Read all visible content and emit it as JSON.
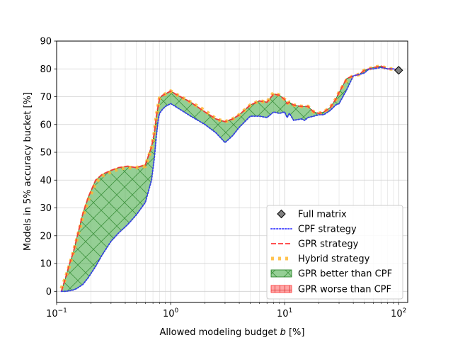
{
  "chart_data": {
    "type": "line",
    "title": "",
    "xlabel_prefix": "Allowed modeling budget ",
    "xlabel_var": "b",
    "xlabel_suffix": " [%]",
    "ylabel": "Models in 5% accuracy bucket [%]",
    "xscale": "log",
    "xlim": [
      0.1,
      120
    ],
    "ylim": [
      -4,
      90
    ],
    "x_major_ticks": [
      {
        "value": 0.1,
        "base": "10",
        "exp": "−1"
      },
      {
        "value": 1,
        "base": "10",
        "exp": "0"
      },
      {
        "value": 10,
        "base": "10",
        "exp": "1"
      },
      {
        "value": 100,
        "base": "10",
        "exp": "2"
      }
    ],
    "y_ticks": [
      {
        "value": 0,
        "label": "0"
      },
      {
        "value": 10,
        "label": "10"
      },
      {
        "value": 20,
        "label": "20"
      },
      {
        "value": 30,
        "label": "30"
      },
      {
        "value": 40,
        "label": "40"
      },
      {
        "value": 50,
        "label": "50"
      },
      {
        "value": 60,
        "label": "60"
      },
      {
        "value": 70,
        "label": "70"
      },
      {
        "value": 80,
        "label": "80"
      },
      {
        "value": 90,
        "label": "90"
      }
    ],
    "grid": "both (major and minor)",
    "legend_position": "lower-right",
    "colors": {
      "cpf": "#3333ff",
      "gpr": "#ff3333",
      "hybrid": "#ffb833",
      "better_fill": "#2ca02c",
      "better_edge": "#1a7a1a",
      "worse_fill": "#ff4d4d",
      "full_matrix": "#808080"
    },
    "legend": [
      {
        "key": "full",
        "label": "Full matrix"
      },
      {
        "key": "cpf",
        "label": "CPF strategy"
      },
      {
        "key": "gpr",
        "label": "GPR strategy"
      },
      {
        "key": "hybrid",
        "label": "Hybrid strategy"
      },
      {
        "key": "better",
        "label": "GPR better than CPF"
      },
      {
        "key": "worse",
        "label": "GPR worse than CPF"
      }
    ],
    "full_matrix": {
      "x": 100,
      "y": 79.5
    },
    "series": [
      {
        "key": "cpf",
        "name": "CPF strategy",
        "x": [
          0.11,
          0.12,
          0.13,
          0.14,
          0.15,
          0.17,
          0.19,
          0.22,
          0.25,
          0.3,
          0.35,
          0.42,
          0.5,
          0.6,
          0.68,
          0.72,
          0.75,
          0.78,
          0.8,
          0.85,
          0.9,
          1.0,
          1.1,
          1.5,
          2.0,
          2.5,
          3.0,
          3.5,
          4.0,
          5.0,
          6.0,
          7.0,
          8.0,
          9.0,
          10.0,
          10.5,
          11.0,
          12.0,
          14.0,
          15.0,
          16.0,
          18.0,
          20.0,
          22.0,
          25.0,
          28.0,
          30.0,
          35.0,
          40.0,
          45.0,
          50.0,
          55.0,
          60.0,
          70.0,
          80.0,
          90.0,
          100.0
        ],
        "y": [
          0,
          0,
          0.2,
          0.5,
          1,
          2.5,
          5,
          9,
          13,
          18,
          21,
          24,
          27.5,
          32,
          40,
          48,
          56,
          62,
          64,
          65.5,
          66.5,
          67.5,
          66.5,
          63,
          60,
          57,
          53.5,
          56,
          59,
          63,
          63,
          62.5,
          64.5,
          64,
          64.5,
          62.5,
          64,
          61.5,
          62,
          61.5,
          62.5,
          63,
          63.5,
          63.5,
          65,
          67,
          67.5,
          72.5,
          77.5,
          78,
          78.5,
          80,
          80,
          80.5,
          80,
          80,
          79.5
        ]
      },
      {
        "key": "gpr",
        "name": "GPR strategy",
        "x": [
          0.11,
          0.12,
          0.13,
          0.14,
          0.15,
          0.17,
          0.19,
          0.22,
          0.25,
          0.3,
          0.35,
          0.42,
          0.5,
          0.6,
          0.68,
          0.72,
          0.75,
          0.78,
          0.8,
          0.85,
          0.9,
          1.0,
          1.1,
          1.5,
          2.0,
          2.5,
          3.0,
          3.5,
          4.0,
          5.0,
          6.0,
          7.0,
          8.0,
          9.0,
          10.0,
          10.5,
          11.0,
          12.0,
          14.0,
          15.0,
          16.0,
          18.0,
          20.0,
          22.0,
          25.0,
          28.0,
          30.0,
          35.0,
          40.0,
          45.0,
          50.0,
          55.0,
          60.0,
          70.0,
          80.0,
          90.0,
          100.0
        ],
        "y": [
          0,
          5,
          10,
          14,
          19,
          28,
          34,
          40,
          42,
          43.5,
          44.5,
          45,
          44.5,
          45.5,
          52,
          57,
          63,
          67,
          69.5,
          70.5,
          71,
          72,
          71,
          68,
          64.5,
          62,
          61,
          62,
          63.5,
          67,
          68.5,
          68,
          71,
          70.5,
          69,
          67.5,
          68,
          67,
          66.5,
          66.5,
          66.5,
          64.5,
          64,
          64.5,
          66,
          69,
          71.5,
          76.5,
          77.5,
          78,
          79.5,
          80,
          80.5,
          81,
          80,
          80,
          79.5
        ]
      },
      {
        "key": "hybrid",
        "name": "Hybrid strategy",
        "x": [
          0.11,
          0.12,
          0.13,
          0.14,
          0.15,
          0.17,
          0.19,
          0.22,
          0.25,
          0.3,
          0.35,
          0.42,
          0.5,
          0.6,
          0.68,
          0.72,
          0.75,
          0.78,
          0.8,
          0.85,
          0.9,
          1.0,
          1.1,
          1.5,
          2.0,
          2.5,
          3.0,
          3.5,
          4.0,
          5.0,
          6.0,
          7.0,
          8.0,
          9.0,
          10.0,
          10.5,
          11.0,
          12.0,
          14.0,
          15.0,
          16.0,
          18.0,
          20.0,
          22.0,
          25.0,
          28.0,
          30.0,
          35.0,
          40.0,
          45.0,
          50.0,
          55.0,
          60.0,
          70.0,
          80.0,
          90.0,
          100.0
        ],
        "y": [
          1,
          5,
          9.5,
          14,
          18.5,
          27,
          33,
          39,
          41.5,
          43,
          44,
          44.5,
          44.5,
          45,
          51.5,
          57,
          63,
          67,
          69.5,
          70.5,
          71,
          72,
          71,
          68,
          65,
          62,
          61,
          62,
          63.5,
          67,
          68.5,
          68,
          71.5,
          70.5,
          69,
          67.5,
          68,
          67,
          66.5,
          66.5,
          66.5,
          64.5,
          64,
          64.5,
          66,
          69,
          71.5,
          76,
          77.5,
          78,
          79.5,
          80,
          80.5,
          81,
          80,
          80,
          79.5
        ]
      }
    ]
  }
}
